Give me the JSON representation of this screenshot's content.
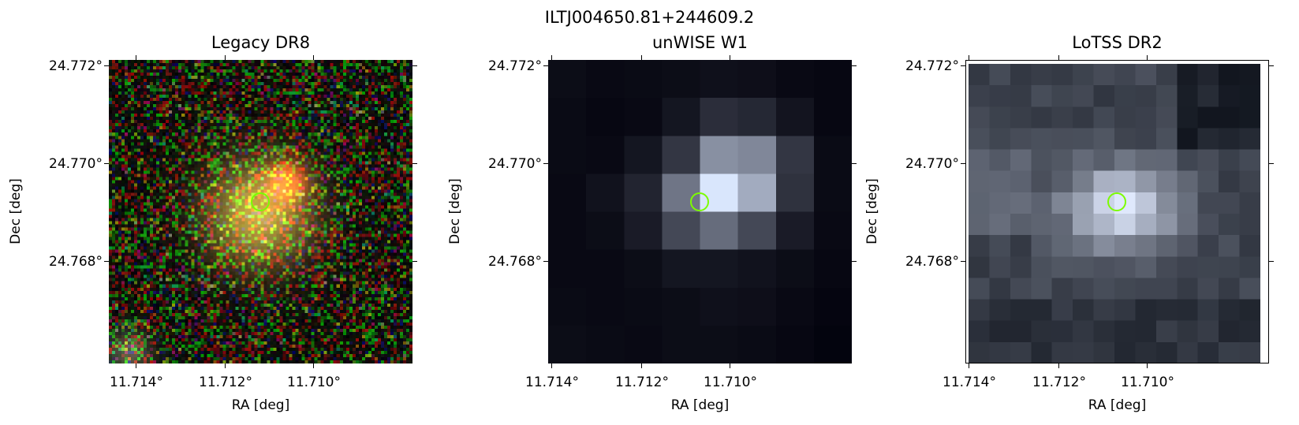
{
  "figure": {
    "title": "ILTJ004650.81+244609.2",
    "marker_color": "#7cfc00"
  },
  "panels": [
    {
      "title": "Legacy DR8",
      "style": "rgb-noise",
      "xlabel": "RA [deg]",
      "ylabel": "Dec [deg]",
      "xticks": [
        "11.714°",
        "11.712°",
        "11.710°"
      ],
      "yticks": [
        "24.772°",
        "24.770°",
        "24.768°"
      ]
    },
    {
      "title": "unWISE W1",
      "style": "coarse-gray",
      "xlabel": "RA [deg]",
      "ylabel": "Dec [deg]",
      "xticks": [
        "11.714°",
        "11.712°",
        "11.710°"
      ],
      "yticks": [
        "24.772°",
        "24.770°",
        "24.768°"
      ]
    },
    {
      "title": "LoTSS DR2",
      "style": "bone-gray",
      "xlabel": "RA [deg]",
      "ylabel": "Dec [deg]",
      "xticks": [
        "11.714°",
        "11.712°",
        "11.710°"
      ],
      "yticks": [
        "24.772°",
        "24.770°",
        "24.768°"
      ]
    }
  ]
}
